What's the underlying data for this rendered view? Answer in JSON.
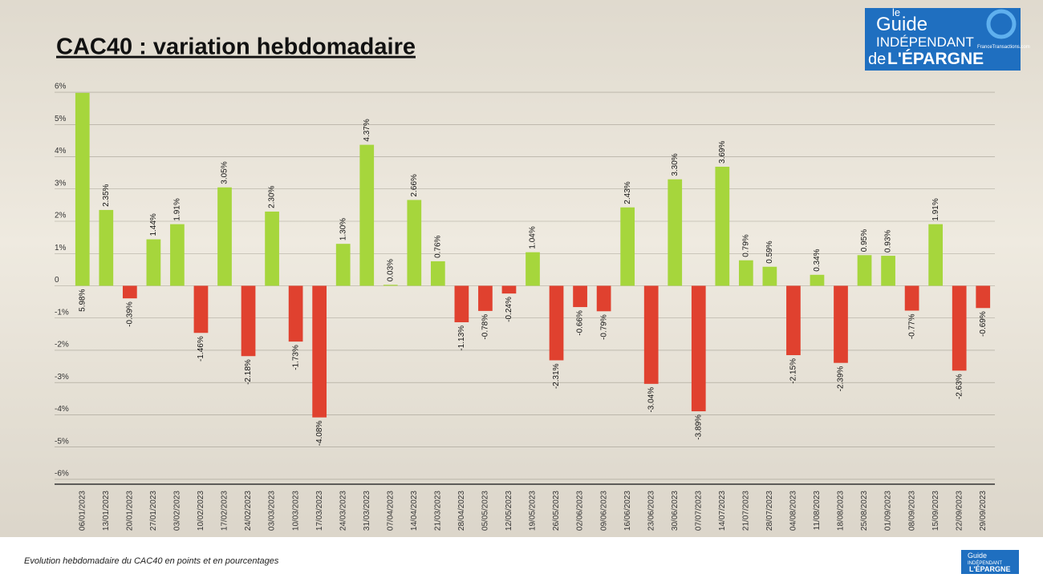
{
  "chart_data": {
    "type": "bar",
    "title": "CAC40 : variation hebdomadaire",
    "caption": "Evolution hebdomadaire du CAC40 en points et en pourcentages",
    "logo": {
      "line1": "le",
      "line2": "Guide",
      "line3": "INDÉPENDANT",
      "line4": "de",
      "line5": "L'ÉPARGNE",
      "site": "FranceTransactions.com"
    },
    "categories": [
      "06/01/2023",
      "13/01/2023",
      "20/01/2023",
      "27/01/2023",
      "03/02/2023",
      "10/02/2023",
      "17/02/2023",
      "24/02/2023",
      "03/03/2023",
      "10/03/2023",
      "17/03/2023",
      "24/03/2023",
      "31/03/2023",
      "07/04/2023",
      "14/04/2023",
      "21/03/2023",
      "28/04/2023",
      "05/05/2023",
      "12/05/2023",
      "19/05/2023",
      "26/05/2023",
      "02/06/2023",
      "09/06/2023",
      "16/06/2023",
      "23/06/2023",
      "30/06/2023",
      "07/07/2023",
      "14/07/2023",
      "21/07/2023",
      "28/07/2023",
      "04/08/2023",
      "11/08/2023",
      "18/08/2023",
      "25/08/2023",
      "01/09/2023",
      "08/09/2023",
      "15/09/2023",
      "22/09/2023",
      "29/09/2023"
    ],
    "values": [
      5.98,
      2.35,
      -0.39,
      1.44,
      1.91,
      -1.46,
      3.05,
      -2.18,
      2.3,
      -1.73,
      -4.08,
      1.3,
      4.37,
      0.03,
      2.66,
      0.76,
      -1.13,
      -0.78,
      -0.24,
      1.04,
      -2.31,
      -0.66,
      -0.79,
      2.43,
      -3.04,
      3.3,
      -3.89,
      3.69,
      0.79,
      0.59,
      -2.15,
      0.34,
      -2.39,
      0.95,
      0.93,
      -0.77,
      1.91,
      -2.63,
      -0.69
    ],
    "value_labels": [
      "5.98%",
      "2.35%",
      "-0.39%",
      "1.44%",
      "1.91%",
      "-1.46%",
      "3.05%",
      "-2.18%",
      "2.30%",
      "-1.73%",
      "-4.08%",
      "1.30%",
      "4.37%",
      "0.03%",
      "2.66%",
      "0.76%",
      "-1.13%",
      "-0.78%",
      "-0.24%",
      "1.04%",
      "-2.31%",
      "-0.66%",
      "-0.79%",
      "2.43%",
      "-3.04%",
      "3.30%",
      "-3.89%",
      "3.69%",
      "0.79%",
      "0.59%",
      "-2.15%",
      "0.34%",
      "-2.39%",
      "0.95%",
      "0.93%",
      "-0.77%",
      "1.91%",
      "-2.63%",
      "-0.69%"
    ],
    "positive_color": "#a6d63c",
    "negative_color": "#e0412f",
    "ylim": [
      -6.15,
      6.1
    ],
    "yticks": [
      {
        "value": 6,
        "label": "6%"
      },
      {
        "value": 5,
        "label": "5%"
      },
      {
        "value": 4,
        "label": "4%"
      },
      {
        "value": 3,
        "label": "3%"
      },
      {
        "value": 2,
        "label": "2%"
      },
      {
        "value": 1,
        "label": "1%"
      },
      0,
      {
        "value": -1,
        "label": "-1%"
      },
      {
        "value": -2,
        "label": "-2%"
      },
      {
        "value": -3,
        "label": "-3%"
      },
      {
        "value": -4,
        "label": "-4%"
      },
      {
        "value": -5,
        "label": "-5%"
      },
      {
        "value": -6,
        "label": "-6%"
      }
    ],
    "grid": true
  }
}
